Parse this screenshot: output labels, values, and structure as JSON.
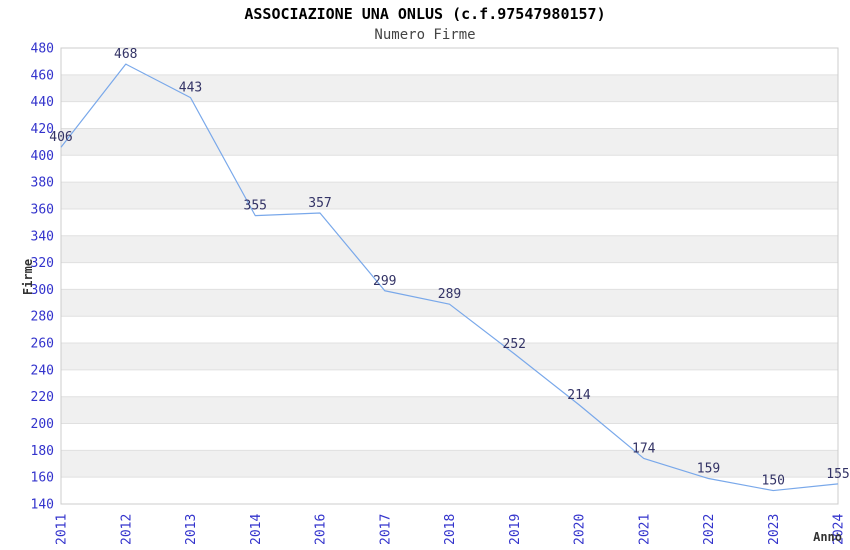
{
  "title": "ASSOCIAZIONE UNA ONLUS (c.f.97547980157)",
  "subtitle": "Numero Firme",
  "chart_data": {
    "type": "line",
    "title": "ASSOCIAZIONE UNA ONLUS (c.f.97547980157)",
    "subtitle": "Numero Firme",
    "categories": [
      "2011",
      "2012",
      "2013",
      "2014",
      "2016",
      "2017",
      "2018",
      "2019",
      "2020",
      "2021",
      "2022",
      "2023",
      "2024"
    ],
    "values": [
      406,
      468,
      443,
      355,
      357,
      299,
      289,
      252,
      214,
      174,
      159,
      150,
      155
    ],
    "xlabel": "Anno",
    "ylabel": "Firme",
    "ylim": [
      140,
      480
    ],
    "ytick_step": 20,
    "yticks": [
      480,
      460,
      440,
      420,
      400,
      380,
      360,
      340,
      320,
      300,
      280,
      260,
      240,
      220,
      200,
      180,
      160,
      140
    ],
    "grid": true,
    "legend": "none",
    "band_style": "alternating horizontal bands, white and light gray, 20 units each",
    "colors": {
      "line": "#79a8ea",
      "tick": "#3333cc",
      "point_label": "#333366",
      "band": "#f0f0f0",
      "grid": "#e0e0e0",
      "border": "#cccccc",
      "axis_title": "#333333",
      "title": "#000000",
      "subtitle": "#444444"
    }
  }
}
